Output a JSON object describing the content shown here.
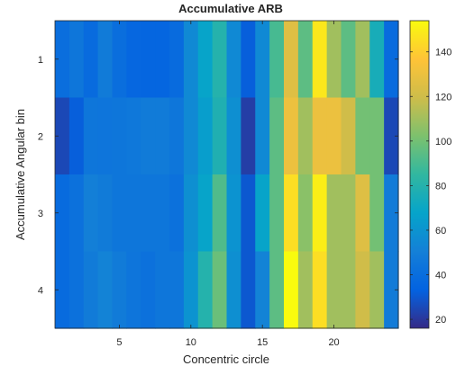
{
  "chart_data": {
    "type": "heatmap",
    "title": "Accumulative ARB",
    "xlabel": "Concentric circle",
    "ylabel": "Accumulative Angular bin",
    "x_ticks": [
      5,
      10,
      15,
      20
    ],
    "y_ticks": [
      1,
      2,
      3,
      4
    ],
    "xlim": [
      0.5,
      24.5
    ],
    "ylim": [
      0.5,
      4.5
    ],
    "y_direction": "reverse",
    "colormap": "parula",
    "clim": [
      16,
      154
    ],
    "colorbar_ticks": [
      20,
      40,
      60,
      80,
      100,
      120,
      140
    ],
    "colors": {
      "text": "#262626",
      "axis": "#262626",
      "background": "#ffffff"
    },
    "z": [
      [
        40,
        45,
        38,
        48,
        40,
        36,
        35,
        35,
        38,
        55,
        68,
        80,
        55,
        32,
        55,
        90,
        125,
        95,
        148,
        110,
        95,
        110,
        75,
        38
      ],
      [
        25,
        32,
        45,
        44,
        45,
        46,
        48,
        48,
        45,
        55,
        65,
        78,
        58,
        22,
        55,
        95,
        130,
        110,
        130,
        130,
        120,
        100,
        100,
        25
      ],
      [
        38,
        42,
        50,
        48,
        45,
        45,
        45,
        45,
        42,
        58,
        68,
        92,
        60,
        30,
        68,
        95,
        145,
        105,
        150,
        110,
        110,
        125,
        100,
        48
      ],
      [
        38,
        42,
        48,
        52,
        48,
        44,
        42,
        45,
        45,
        60,
        80,
        98,
        58,
        30,
        52,
        95,
        155,
        110,
        145,
        110,
        110,
        120,
        110,
        48
      ]
    ]
  }
}
